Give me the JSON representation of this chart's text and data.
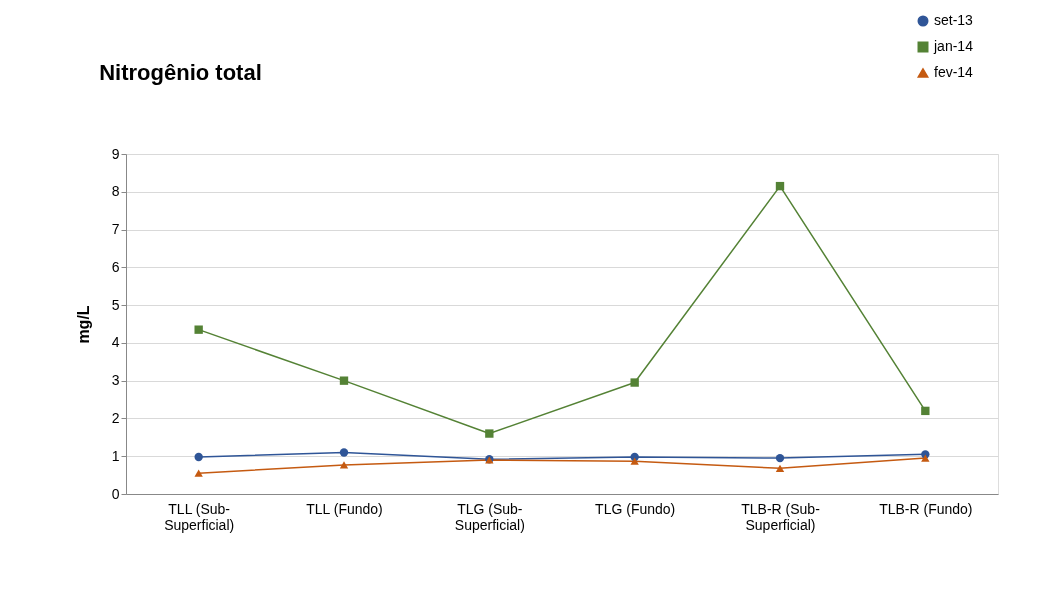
{
  "chart_data": {
    "type": "line",
    "title": "Nitrogênio total",
    "ylabel": "mg/L",
    "categories": [
      "TLL (Sub-Superficial)",
      "TLL (Fundo)",
      "TLG (Sub-Superficial)",
      "TLG (Fundo)",
      "TLB-R (Sub-Superficial)",
      "TLB-R (Fundo)"
    ],
    "series": [
      {
        "name": "set-13",
        "color": "#2f5597",
        "marker": "circle",
        "values": [
          0.98,
          1.1,
          0.92,
          0.98,
          0.95,
          1.05
        ]
      },
      {
        "name": "jan-14",
        "color": "#548235",
        "marker": "square",
        "values": [
          4.35,
          3.0,
          1.6,
          2.95,
          8.15,
          2.2
        ]
      },
      {
        "name": "fev-14",
        "color": "#c55a11",
        "marker": "triangle",
        "values": [
          0.55,
          0.77,
          0.9,
          0.87,
          0.68,
          0.95
        ]
      }
    ],
    "ylim": [
      0,
      9
    ],
    "yticks": [
      0,
      1,
      2,
      3,
      4,
      5,
      6,
      7,
      8,
      9
    ],
    "grid": "y",
    "legend": "top right",
    "line_style": "solid"
  }
}
